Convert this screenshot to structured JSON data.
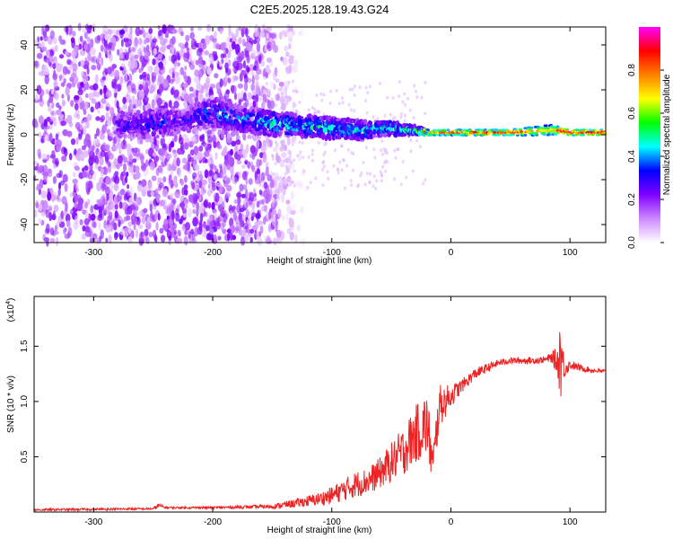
{
  "figure": {
    "title": "C2E5.2025.128.19.43.G24"
  },
  "chart_data": [
    {
      "type": "heatmap",
      "xlabel": "Height of straight line (km)",
      "ylabel": "Frequency (Hz)",
      "xlim": [
        -350,
        130
      ],
      "ylim": [
        -48,
        48
      ],
      "xticks": [
        -300,
        -200,
        -100,
        0,
        100
      ],
      "yticks": [
        -40,
        -20,
        0,
        20,
        40
      ],
      "colorbar": {
        "label": "Normalized spectral amplitude",
        "range": [
          0.0,
          1.0
        ],
        "ticks": [
          "0.0",
          "0.2",
          "0.4",
          "0.6",
          "0.8"
        ],
        "colors": [
          "#ffffff",
          "#cc88ff",
          "#8000ff",
          "#0000ff",
          "#00ffff",
          "#00ff00",
          "#ffff00",
          "#ff8000",
          "#ff0000",
          "#ff00ff"
        ]
      },
      "signal_track": {
        "x": [
          -275,
          -250,
          -225,
          -200,
          -175,
          -150,
          -125,
          -100,
          -75,
          -50,
          -40,
          -30,
          -20,
          0,
          20,
          50,
          85,
          90,
          100,
          130
        ],
        "center_hz": [
          4,
          5,
          6,
          10,
          7,
          5,
          4,
          3,
          2,
          3,
          2,
          2,
          1,
          1,
          1,
          1,
          2,
          2,
          1,
          1
        ],
        "width_hz": [
          6,
          8,
          6,
          8,
          7,
          7,
          6,
          6,
          5,
          4,
          3,
          2,
          1.5,
          1.5,
          1.5,
          1.5,
          3,
          2,
          1.5,
          1.5
        ],
        "peak_amplitude": [
          0.3,
          0.35,
          0.3,
          0.4,
          0.4,
          0.45,
          0.45,
          0.45,
          0.45,
          0.5,
          0.5,
          0.6,
          0.8,
          0.85,
          0.9,
          0.9,
          0.7,
          0.9,
          0.95,
          0.95
        ]
      },
      "noise_region": {
        "x_range": [
          -350,
          -160
        ],
        "description_level": 0.2
      }
    },
    {
      "type": "line",
      "xlabel": "Height of straight line (km)",
      "ylabel": "SNR (10 * v/v)",
      "y_multiplier": "(x10^4)",
      "y_multiplier_base": "(x10",
      "y_multiplier_exp": "4",
      "y_multiplier_close": ")",
      "xlim": [
        -350,
        130
      ],
      "ylim": [
        0,
        1.95
      ],
      "xticks": [
        -300,
        -200,
        -100,
        0,
        100
      ],
      "yticks": [
        0.5,
        1.0,
        1.5
      ],
      "ytick_labels": [
        "0.5",
        "1.0",
        "1.5"
      ],
      "color": "#ee2222",
      "series": [
        {
          "x": [
            -350,
            -250,
            -245,
            -240,
            -200,
            -150,
            -130,
            -110,
            -100,
            -90,
            -80,
            -70,
            -60,
            -50,
            -40,
            -30,
            -20,
            -15,
            -10,
            0,
            10,
            20,
            30,
            40,
            50,
            70,
            80,
            85,
            90,
            92,
            95,
            100,
            110,
            120,
            130
          ],
          "y": [
            0.02,
            0.03,
            0.06,
            0.04,
            0.04,
            0.05,
            0.08,
            0.12,
            0.15,
            0.2,
            0.25,
            0.28,
            0.35,
            0.45,
            0.55,
            0.7,
            0.8,
            0.4,
            0.95,
            1.05,
            1.15,
            1.25,
            1.3,
            1.35,
            1.37,
            1.37,
            1.38,
            1.4,
            1.35,
            1.45,
            1.3,
            1.33,
            1.3,
            1.28,
            1.27
          ],
          "noise_amplitude": [
            0.01,
            0.01,
            0.02,
            0.01,
            0.01,
            0.02,
            0.04,
            0.06,
            0.08,
            0.1,
            0.12,
            0.12,
            0.14,
            0.18,
            0.22,
            0.26,
            0.3,
            0.2,
            0.2,
            0.1,
            0.06,
            0.05,
            0.04,
            0.03,
            0.03,
            0.03,
            0.03,
            0.05,
            0.15,
            0.45,
            0.1,
            0.04,
            0.03,
            0.02,
            0.02
          ]
        }
      ]
    }
  ]
}
